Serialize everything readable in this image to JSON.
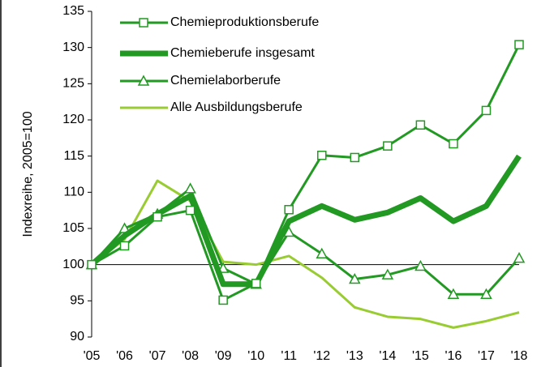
{
  "chart_data": {
    "type": "line",
    "ylabel": "Indexreihe, 2005=100",
    "categories": [
      "'05",
      "'06",
      "'07",
      "'08",
      "'09",
      "'10",
      "'11",
      "'12",
      "'13",
      "'14",
      "'15",
      "'16",
      "'17",
      "'18"
    ],
    "series": [
      {
        "name": "Chemieproduktionsberufe",
        "color": "#229922",
        "marker": "square",
        "width": 3,
        "values": [
          100,
          102.6,
          106.6,
          107.5,
          95.1,
          97.4,
          107.6,
          115.1,
          114.8,
          116.4,
          119.3,
          116.7,
          121.3,
          130.4
        ]
      },
      {
        "name": "Chemieberufe insgesamt",
        "color": "#229922",
        "marker": "none",
        "width": 7,
        "values": [
          100,
          104,
          107,
          109.5,
          97.3,
          97.3,
          106,
          108.1,
          106.2,
          107.2,
          109.2,
          106,
          108.1,
          115
        ]
      },
      {
        "name": "Chemielaborberufe",
        "color": "#229922",
        "marker": "triangle",
        "width": 3,
        "values": [
          100,
          105,
          107,
          110.5,
          99.5,
          97.3,
          104.5,
          101.5,
          98,
          98.6,
          99.8,
          95.9,
          95.9,
          100.9
        ]
      },
      {
        "name": "Alle Ausbildungsberufe",
        "color": "#99cc33",
        "marker": "none",
        "width": 3,
        "values": [
          100,
          103.5,
          111.6,
          108.8,
          100.4,
          100,
          101.2,
          98.2,
          94.1,
          92.8,
          92.5,
          91.3,
          92.2,
          93.4
        ]
      }
    ],
    "ylim": [
      90,
      135
    ],
    "yticks": [
      90,
      95,
      100,
      105,
      110,
      115,
      120,
      125,
      130,
      135
    ],
    "reference_line": 100,
    "legend": "upper left"
  }
}
